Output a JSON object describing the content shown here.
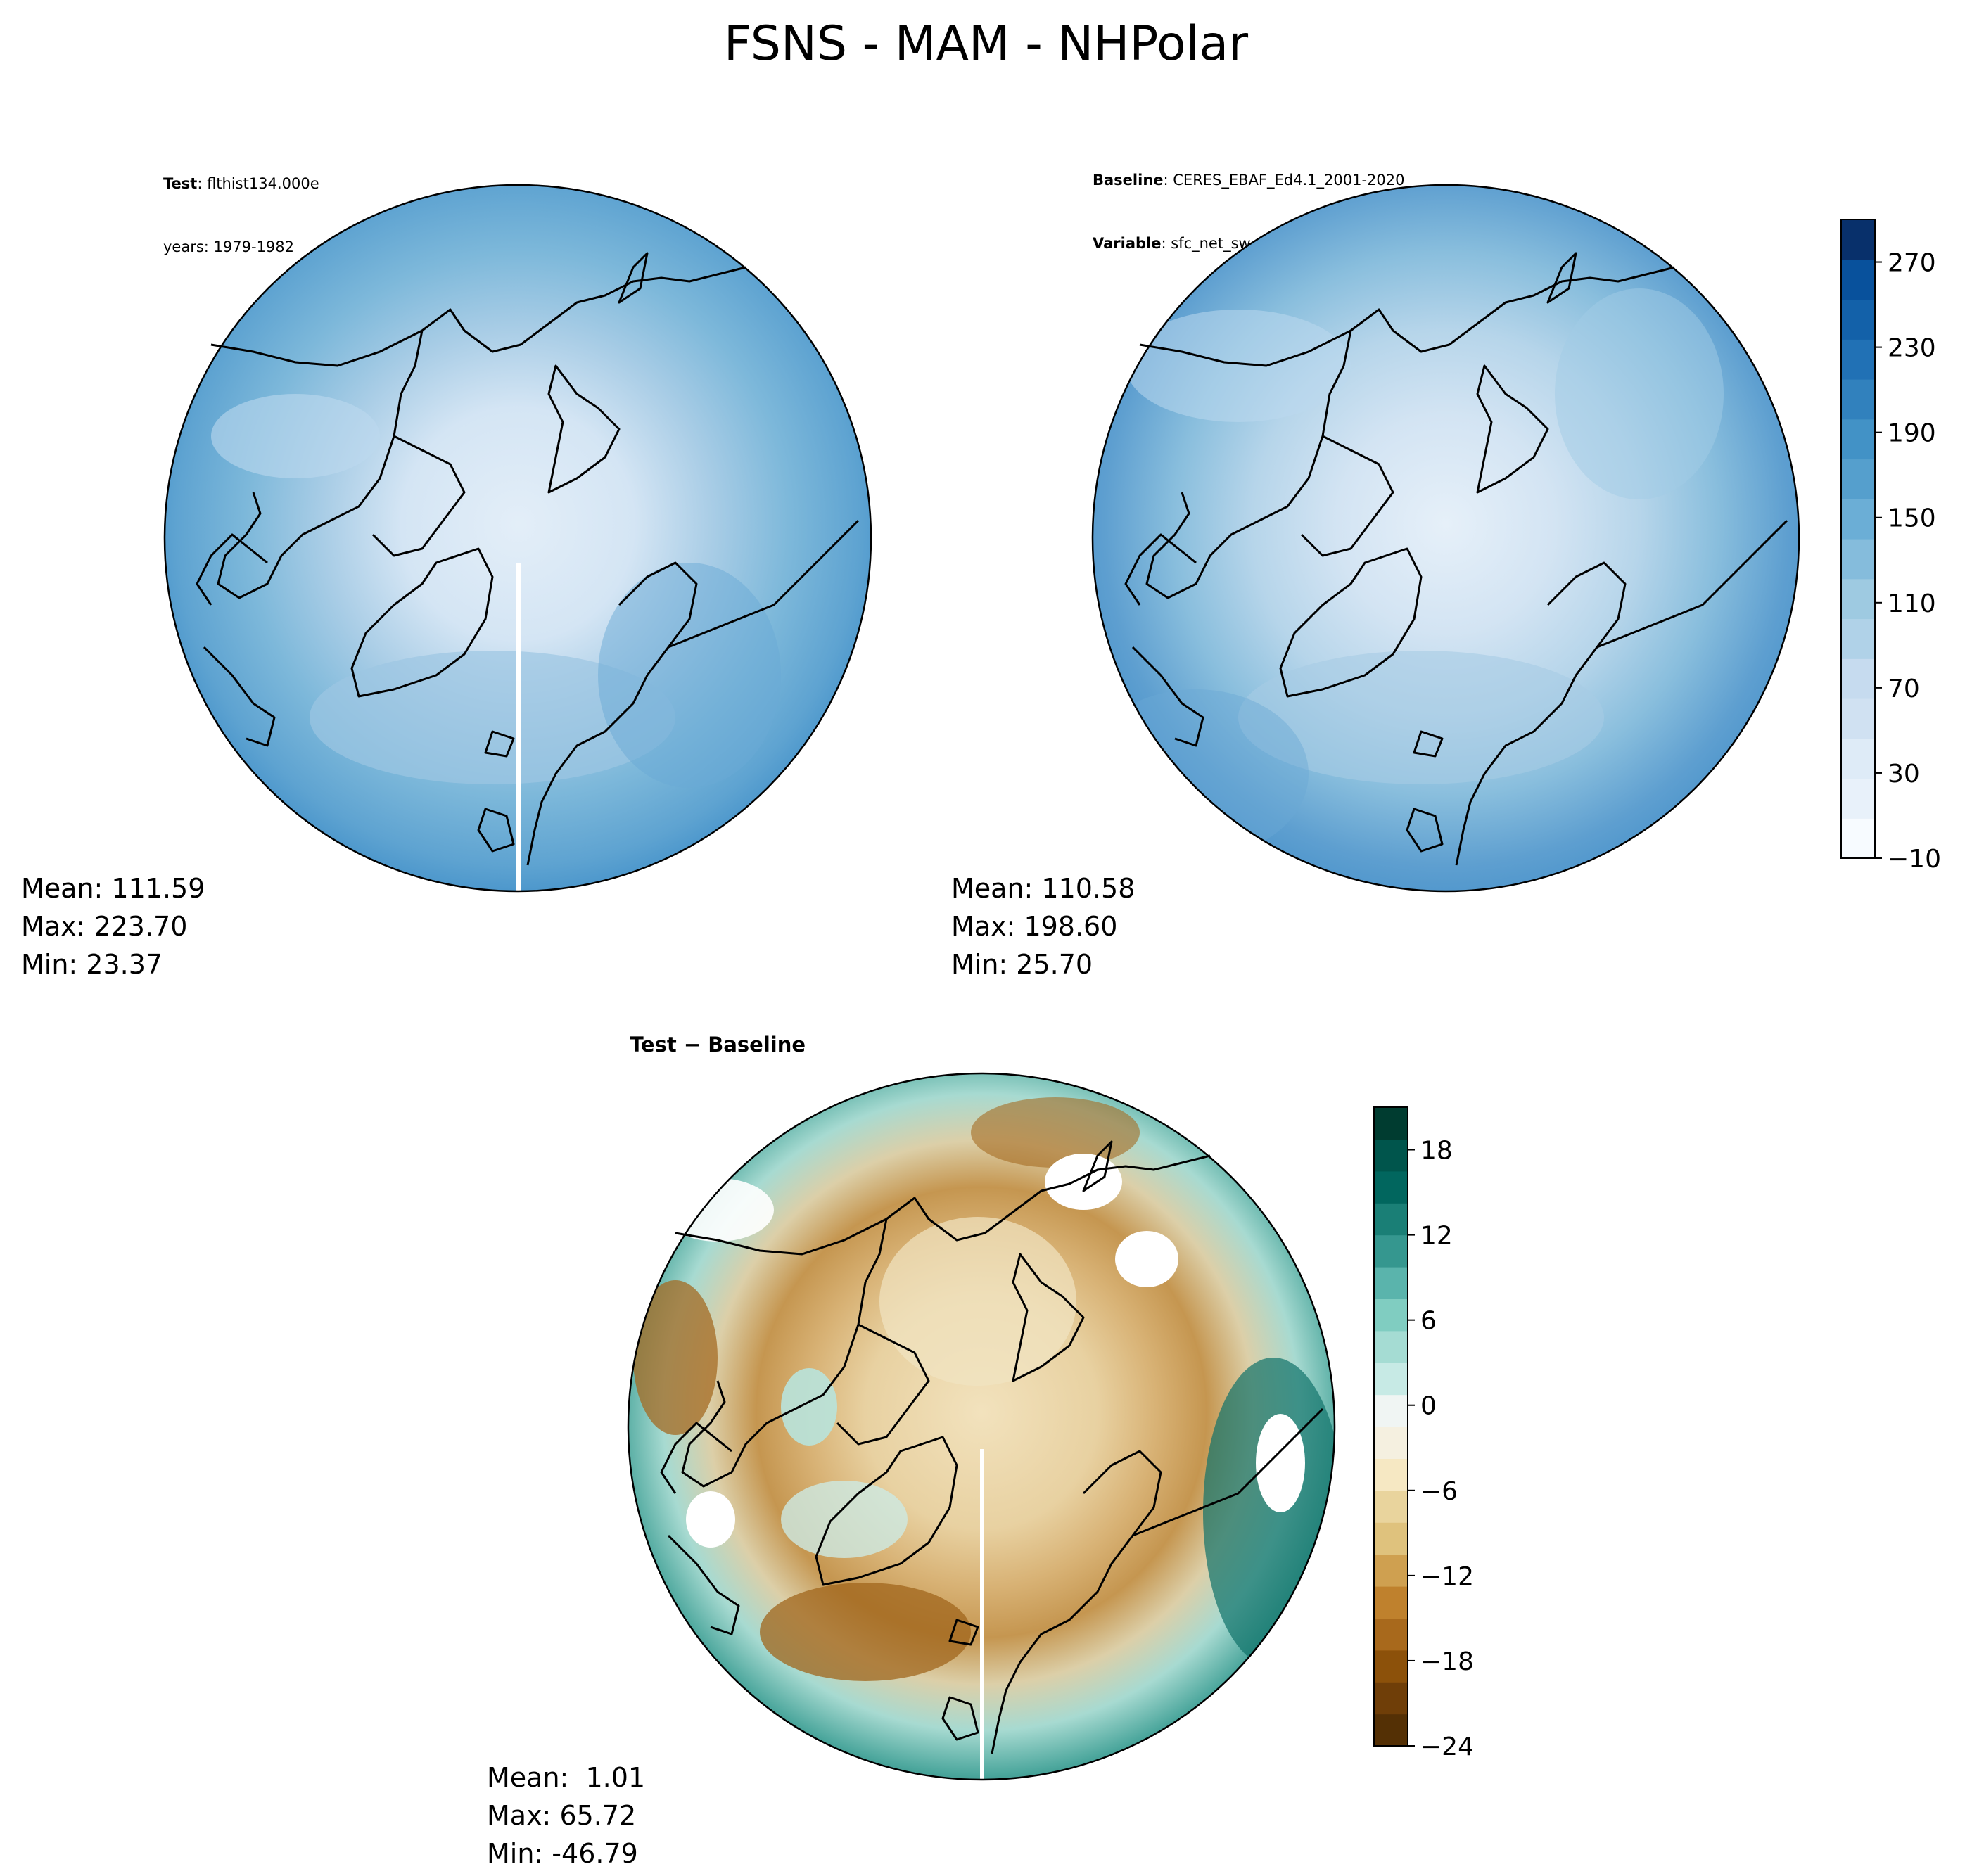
{
  "title": "FSNS - MAM - NHPolar",
  "panels": {
    "test": {
      "label_bold": "Test",
      "label_text": ": flthist134.000e",
      "line2": "years: 1979-1982",
      "mean": "Mean: 111.59",
      "max": "Max: 223.70",
      "min": "Min: 23.37"
    },
    "baseline": {
      "label_bold": "Baseline",
      "label_text": ": CERES_EBAF_Ed4.1_2001-2020",
      "var_bold": "Variable",
      "var_text": ": sfc_net_sw_all_mon",
      "mean": "Mean: 110.58",
      "max": "Max: 198.60",
      "min": "Min: 25.70"
    },
    "diff": {
      "title": "Test − Baseline",
      "mean": "Mean:  1.01",
      "max": "Max: 65.72",
      "min": "Min: -46.79"
    }
  },
  "colorbars": {
    "main": {
      "colormap": "Blues",
      "range": [
        -10,
        290
      ],
      "levels": 15,
      "ticks": [
        "−10",
        "30",
        "70",
        "110",
        "150",
        "190",
        "230",
        "270"
      ],
      "colors": [
        "#f7fbff",
        "#e8f1fa",
        "#deebf7",
        "#d0e1f2",
        "#c6dbef",
        "#b0d2e8",
        "#9ecae1",
        "#85bcdc",
        "#6baed6",
        "#559fcd",
        "#4292c6",
        "#3181bd",
        "#2171b5",
        "#1361a9",
        "#08519c",
        "#08306b"
      ]
    },
    "diff": {
      "colormap": "BrBG",
      "range": [
        -24,
        21
      ],
      "ticks": [
        "−24",
        "−18",
        "−12",
        "−6",
        "0",
        "6",
        "12",
        "18"
      ],
      "colors": [
        "#543005",
        "#6f3e08",
        "#8c510a",
        "#a8691c",
        "#bf812d",
        "#cfa050",
        "#dfc27d",
        "#e9d49d",
        "#f6e8c3",
        "#f5f0e0",
        "#f0f5f3",
        "#c7eae5",
        "#a5dcd3",
        "#80cdc1",
        "#5ab4ac",
        "#35978f",
        "#1a7f76",
        "#01665e",
        "#00554c",
        "#003c30"
      ]
    }
  }
}
